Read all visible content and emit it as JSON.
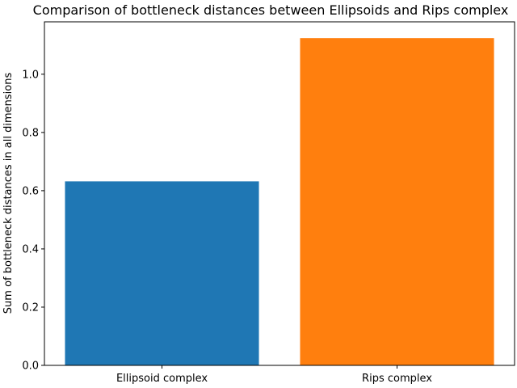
{
  "chart_data": {
    "type": "bar",
    "title": "Comparison of bottleneck distances between Ellipsoids and Rips complex",
    "xlabel": "",
    "ylabel": "Sum of bottleneck distances in all dimensions",
    "categories": [
      "Ellipsoid complex",
      "Rips complex"
    ],
    "values": [
      0.632,
      1.124
    ],
    "bar_colors": [
      "#1f77b4",
      "#ff7f0e"
    ],
    "ylim": [
      0,
      1.18
    ],
    "yticks": [
      0.0,
      0.2,
      0.4,
      0.6,
      0.8,
      1.0
    ],
    "ytick_labels": [
      "0.0",
      "0.2",
      "0.4",
      "0.6",
      "0.8",
      "1.0"
    ],
    "grid": false,
    "legend": "none"
  }
}
